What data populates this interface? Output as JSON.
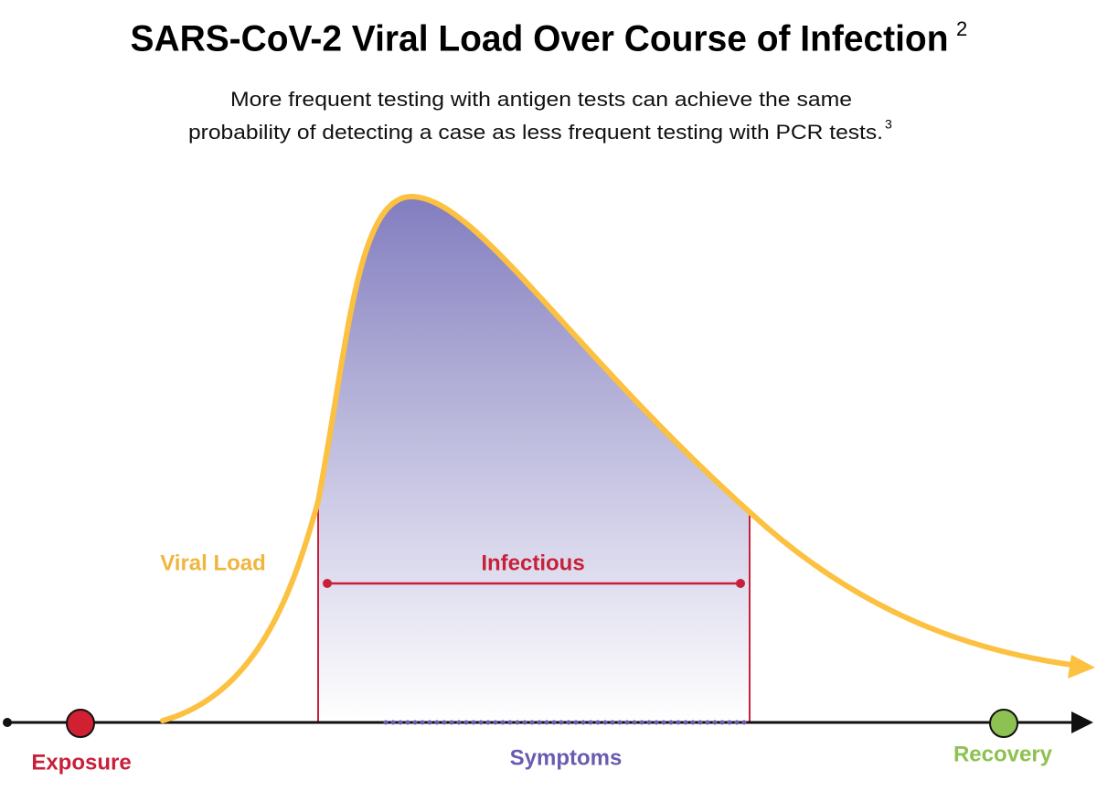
{
  "header": {
    "title": "SARS-CoV-2 Viral Load Over Course of Infection",
    "title_note": "2",
    "subtitle": [
      "More frequent testing with antigen tests can achieve the same",
      "probability of detecting a case as less frequent testing with PCR tests."
    ],
    "subtitle_note": "3"
  },
  "labels": {
    "viral_load": "Viral Load",
    "infectious": "Infectious",
    "symptoms": "Symptoms",
    "exposure": "Exposure",
    "recovery": "Recovery"
  }
}
